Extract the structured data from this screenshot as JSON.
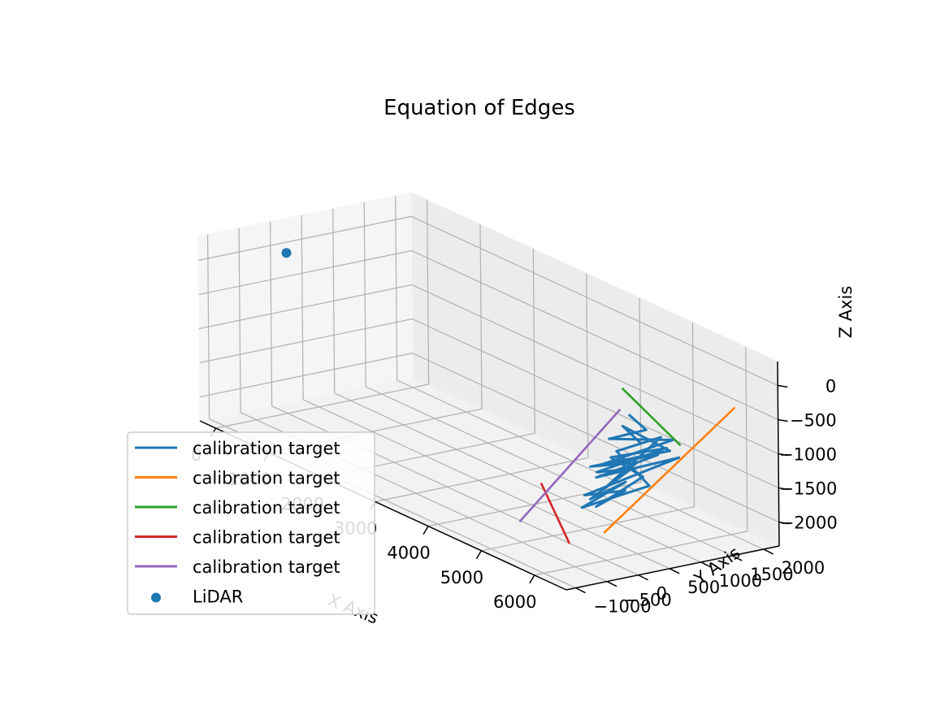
{
  "chart_data": {
    "type": "line3d",
    "title": "Equation of Edges",
    "xlabel": "X Axis",
    "ylabel": "Y Axis",
    "zlabel": "Z Axis",
    "x_ticks": [
      "0",
      "1000",
      "2000",
      "3000",
      "4000",
      "5000",
      "6000"
    ],
    "y_ticks": [
      "−1000",
      "−500",
      "0",
      "500",
      "1000",
      "1500",
      "2000"
    ],
    "z_ticks": [
      "0",
      "−500",
      "−1000",
      "−1500",
      "−2000"
    ],
    "xlim": [
      -300,
      6600
    ],
    "ylim": [
      -1150,
      2250
    ],
    "zlim": [
      -2350,
      350
    ],
    "grid": true,
    "legend_position": "lower-left",
    "colors": {
      "calibration_target_1": "#1f77b4",
      "calibration_target_2": "#ff7f0e",
      "calibration_target_3": "#2ca02c",
      "calibration_target_4": "#d62728",
      "calibration_target_5": "#9467bd",
      "lidar": "#1f77b4"
    },
    "legend": [
      {
        "label": "calibration target",
        "color": "#1f77b4",
        "marker": "line"
      },
      {
        "label": "calibration target",
        "color": "#ff7f0e",
        "marker": "line"
      },
      {
        "label": "calibration target",
        "color": "#2ca02c",
        "marker": "line"
      },
      {
        "label": "calibration target",
        "color": "#d62728",
        "marker": "line"
      },
      {
        "label": "calibration target",
        "color": "#9467bd",
        "marker": "line"
      },
      {
        "label": "LiDAR",
        "color": "#1f77b4",
        "marker": "point"
      }
    ],
    "series": [
      {
        "name": "calibration target",
        "color": "#1f77b4",
        "kind": "scan",
        "points": [
          [
            5200,
            1050,
            -700
          ],
          [
            5350,
            1200,
            -900
          ],
          [
            5000,
            900,
            -1100
          ],
          [
            5500,
            1500,
            -1050
          ],
          [
            5100,
            700,
            -1400
          ],
          [
            5450,
            1300,
            -1250
          ],
          [
            5050,
            650,
            -1600
          ],
          [
            5550,
            1550,
            -1300
          ],
          [
            5000,
            500,
            -1850
          ],
          [
            5300,
            900,
            -1750
          ],
          [
            5100,
            600,
            -2000
          ],
          [
            5400,
            1100,
            -1550
          ],
          [
            5150,
            800,
            -1300
          ],
          [
            5500,
            1400,
            -1150
          ],
          [
            5000,
            700,
            -1550
          ],
          [
            5300,
            1000,
            -1450
          ],
          [
            5050,
            550,
            -1900
          ],
          [
            5250,
            950,
            -1650
          ],
          [
            4950,
            500,
            -2050
          ],
          [
            5400,
            1200,
            -1700
          ],
          [
            5200,
            850,
            -1200
          ],
          [
            5450,
            1350,
            -1000
          ],
          [
            5100,
            750,
            -1750
          ],
          [
            5350,
            1050,
            -1350
          ],
          [
            5000,
            600,
            -1450
          ],
          [
            5500,
            1450,
            -1200
          ],
          [
            5200,
            950,
            -850
          ],
          [
            5300,
            1150,
            -1100
          ]
        ]
      },
      {
        "name": "calibration target",
        "color": "#ff7f0e",
        "kind": "line",
        "points": [
          [
            5600,
            300,
            -2150
          ],
          [
            6200,
            1900,
            -400
          ]
        ]
      },
      {
        "name": "calibration target",
        "color": "#2ca02c",
        "kind": "line",
        "points": [
          [
            4900,
            1200,
            -450
          ],
          [
            5700,
            1450,
            -1050
          ]
        ]
      },
      {
        "name": "calibration target",
        "color": "#d62728",
        "kind": "line",
        "points": [
          [
            4600,
            150,
            -1750
          ],
          [
            5600,
            -250,
            -2200
          ]
        ]
      },
      {
        "name": "calibration target",
        "color": "#9467bd",
        "kind": "line",
        "points": [
          [
            4600,
            -200,
            -2250
          ],
          [
            5100,
            1000,
            -650
          ]
        ]
      }
    ],
    "lidar": {
      "name": "LiDAR",
      "color": "#1f77b4",
      "point": [
        0,
        0,
        0
      ]
    }
  }
}
